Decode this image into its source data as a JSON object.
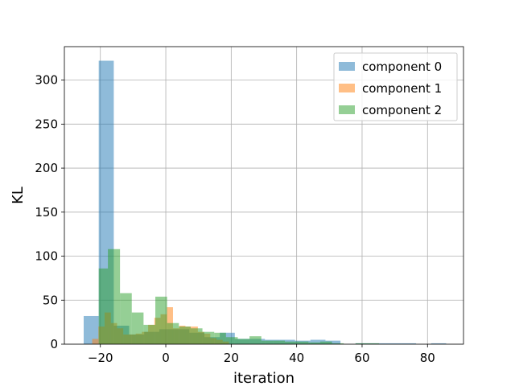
{
  "chart_data": {
    "type": "bar",
    "title": "",
    "xlabel": "iteration",
    "ylabel": "KL",
    "xlim": [
      -31,
      91
    ],
    "ylim": [
      0,
      338
    ],
    "xticks": [
      -20,
      0,
      20,
      40,
      60,
      80
    ],
    "yticks": [
      0,
      50,
      100,
      150,
      200,
      250,
      300
    ],
    "grid": true,
    "legend_position": "top-right",
    "series": [
      {
        "name": "component 0",
        "color": "#1f77b4",
        "opacity": 0.5,
        "bins": [
          {
            "x0": -25.1,
            "x1": -20.5,
            "y": 32
          },
          {
            "x0": -20.5,
            "x1": -15.9,
            "y": 322
          },
          {
            "x0": -15.9,
            "x1": -11.2,
            "y": 21
          },
          {
            "x0": -11.2,
            "x1": -6.6,
            "y": 11
          },
          {
            "x0": -6.6,
            "x1": -2.0,
            "y": 14
          },
          {
            "x0": -2.0,
            "x1": 2.6,
            "y": 17
          },
          {
            "x0": 2.6,
            "x1": 7.2,
            "y": 17
          },
          {
            "x0": 7.2,
            "x1": 11.8,
            "y": 13
          },
          {
            "x0": 11.8,
            "x1": 16.5,
            "y": 8
          },
          {
            "x0": 16.5,
            "x1": 21.1,
            "y": 13
          },
          {
            "x0": 21.1,
            "x1": 25.7,
            "y": 6
          },
          {
            "x0": 25.7,
            "x1": 30.3,
            "y": 6
          },
          {
            "x0": 30.3,
            "x1": 34.9,
            "y": 5
          },
          {
            "x0": 34.9,
            "x1": 39.5,
            "y": 5
          },
          {
            "x0": 39.5,
            "x1": 44.2,
            "y": 4
          },
          {
            "x0": 44.2,
            "x1": 48.8,
            "y": 5
          },
          {
            "x0": 48.8,
            "x1": 53.4,
            "y": 4
          },
          {
            "x0": 53.4,
            "x1": 58.0,
            "y": 0
          },
          {
            "x0": 58.0,
            "x1": 62.6,
            "y": 1
          },
          {
            "x0": 62.6,
            "x1": 67.2,
            "y": 1
          },
          {
            "x0": 67.2,
            "x1": 71.9,
            "y": 1
          },
          {
            "x0": 71.9,
            "x1": 76.5,
            "y": 1
          },
          {
            "x0": 76.5,
            "x1": 81.1,
            "y": 0
          },
          {
            "x0": 81.1,
            "x1": 85.7,
            "y": 1
          }
        ]
      },
      {
        "name": "component 1",
        "color": "#ff7f0e",
        "opacity": 0.5,
        "bins": [
          {
            "x0": -22.5,
            "x1": -20.6,
            "y": 6
          },
          {
            "x0": -20.6,
            "x1": -18.7,
            "y": 20
          },
          {
            "x0": -18.7,
            "x1": -16.8,
            "y": 36
          },
          {
            "x0": -16.8,
            "x1": -14.9,
            "y": 24
          },
          {
            "x0": -14.9,
            "x1": -13.0,
            "y": 18
          },
          {
            "x0": -13.0,
            "x1": -11.1,
            "y": 11
          },
          {
            "x0": -11.1,
            "x1": -9.2,
            "y": 11
          },
          {
            "x0": -9.2,
            "x1": -7.3,
            "y": 12
          },
          {
            "x0": -7.3,
            "x1": -5.4,
            "y": 14
          },
          {
            "x0": -5.4,
            "x1": -3.5,
            "y": 22
          },
          {
            "x0": -3.5,
            "x1": -1.6,
            "y": 30
          },
          {
            "x0": -1.6,
            "x1": 0.3,
            "y": 34
          },
          {
            "x0": 0.3,
            "x1": 2.2,
            "y": 42
          },
          {
            "x0": 2.2,
            "x1": 4.1,
            "y": 18
          },
          {
            "x0": 4.1,
            "x1": 6.0,
            "y": 21
          },
          {
            "x0": 6.0,
            "x1": 7.9,
            "y": 20
          },
          {
            "x0": 7.9,
            "x1": 9.8,
            "y": 20
          },
          {
            "x0": 9.8,
            "x1": 11.7,
            "y": 14
          },
          {
            "x0": 11.7,
            "x1": 13.6,
            "y": 12
          },
          {
            "x0": 13.6,
            "x1": 15.5,
            "y": 7
          },
          {
            "x0": 15.5,
            "x1": 17.4,
            "y": 5
          },
          {
            "x0": 17.4,
            "x1": 19.3,
            "y": 3
          }
        ]
      },
      {
        "name": "component 2",
        "color": "#2ca02c",
        "opacity": 0.5,
        "bins": [
          {
            "x0": -20.5,
            "x1": -17.7,
            "y": 86
          },
          {
            "x0": -17.7,
            "x1": -14.0,
            "y": 108
          },
          {
            "x0": -14.0,
            "x1": -10.4,
            "y": 58
          },
          {
            "x0": -10.4,
            "x1": -6.8,
            "y": 36
          },
          {
            "x0": -6.8,
            "x1": -3.2,
            "y": 22
          },
          {
            "x0": -3.2,
            "x1": 0.4,
            "y": 54
          },
          {
            "x0": 0.4,
            "x1": 4.0,
            "y": 24
          },
          {
            "x0": 4.0,
            "x1": 7.6,
            "y": 20
          },
          {
            "x0": 7.6,
            "x1": 11.2,
            "y": 18
          },
          {
            "x0": 11.2,
            "x1": 14.8,
            "y": 14
          },
          {
            "x0": 14.8,
            "x1": 18.4,
            "y": 13
          },
          {
            "x0": 18.4,
            "x1": 22.0,
            "y": 8
          },
          {
            "x0": 22.0,
            "x1": 25.6,
            "y": 6
          },
          {
            "x0": 25.6,
            "x1": 29.2,
            "y": 9
          },
          {
            "x0": 29.2,
            "x1": 32.8,
            "y": 4
          },
          {
            "x0": 32.8,
            "x1": 36.4,
            "y": 4
          },
          {
            "x0": 36.4,
            "x1": 40.0,
            "y": 3
          },
          {
            "x0": 40.0,
            "x1": 43.6,
            "y": 3
          },
          {
            "x0": 43.6,
            "x1": 47.2,
            "y": 2
          },
          {
            "x0": 47.2,
            "x1": 50.8,
            "y": 3
          },
          {
            "x0": 50.8,
            "x1": 54.4,
            "y": 1
          },
          {
            "x0": 54.4,
            "x1": 58.0,
            "y": 0
          },
          {
            "x0": 58.0,
            "x1": 61.6,
            "y": 1
          },
          {
            "x0": 61.6,
            "x1": 65.2,
            "y": 1
          }
        ]
      }
    ]
  }
}
